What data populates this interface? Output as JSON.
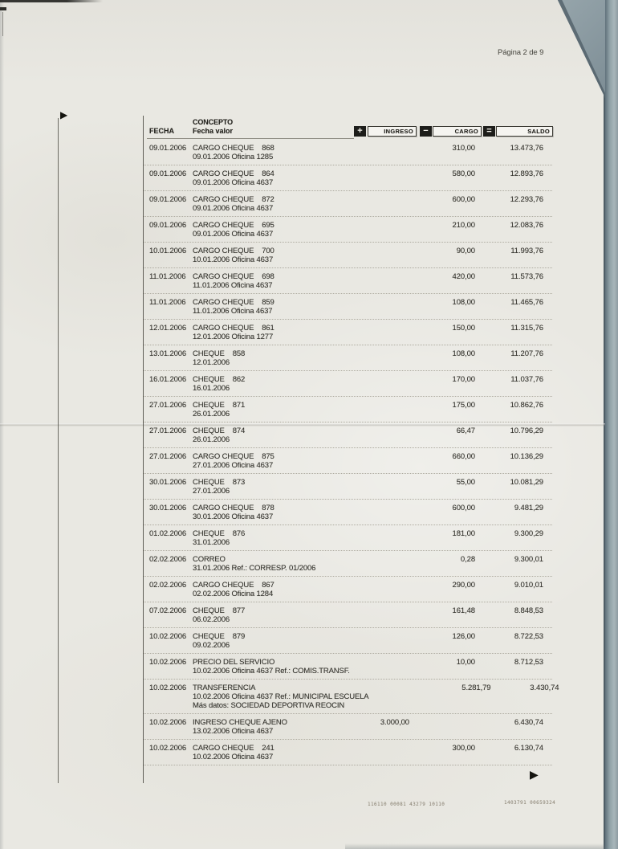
{
  "page": {
    "indicator": "Página 2 de 9",
    "footer_code_left": "116110 00081 43279 10110",
    "footer_code_right": "1403791 00659324"
  },
  "icons": {
    "forward_top": "▶",
    "forward_bottom": "▶",
    "plus": "+",
    "minus": "−",
    "equals": "="
  },
  "colors": {
    "paper": "#e9e8e2",
    "ink": "#35342e",
    "rule": "#514f48",
    "separator": "#aeaba0",
    "scanner_grey": "#8d9ba1"
  },
  "table": {
    "col_fecha": "FECHA",
    "col_concepto": "CONCEPTO",
    "col_fecha_valor": "Fecha valor",
    "col_ingreso": "INGRESO",
    "col_cargo": "CARGO",
    "col_saldo": "SALDO",
    "rows": [
      {
        "fecha": "09.01.2006",
        "concepto": "CARGO CHEQUE    868",
        "detalle": "09.01.2006 Oficina 1285",
        "ingreso": "",
        "cargo": "310,00",
        "saldo": "13.473,76"
      },
      {
        "fecha": "09.01.2006",
        "concepto": "CARGO CHEQUE    864",
        "detalle": "09.01.2006 Oficina 4637",
        "ingreso": "",
        "cargo": "580,00",
        "saldo": "12.893,76"
      },
      {
        "fecha": "09.01.2006",
        "concepto": "CARGO CHEQUE    872",
        "detalle": "09.01.2006 Oficina 4637",
        "ingreso": "",
        "cargo": "600,00",
        "saldo": "12.293,76"
      },
      {
        "fecha": "09.01.2006",
        "concepto": "CARGO CHEQUE    695",
        "detalle": "09.01.2006 Oficina 4637",
        "ingreso": "",
        "cargo": "210,00",
        "saldo": "12.083,76"
      },
      {
        "fecha": "10.01.2006",
        "concepto": "CARGO CHEQUE    700",
        "detalle": "10.01.2006 Oficina 4637",
        "ingreso": "",
        "cargo": "90,00",
        "saldo": "11.993,76"
      },
      {
        "fecha": "11.01.2006",
        "concepto": "CARGO CHEQUE    698",
        "detalle": "11.01.2006 Oficina 4637",
        "ingreso": "",
        "cargo": "420,00",
        "saldo": "11.573,76"
      },
      {
        "fecha": "11.01.2006",
        "concepto": "CARGO CHEQUE    859",
        "detalle": "11.01.2006 Oficina 4637",
        "ingreso": "",
        "cargo": "108,00",
        "saldo": "11.465,76"
      },
      {
        "fecha": "12.01.2006",
        "concepto": "CARGO CHEQUE    861",
        "detalle": "12.01.2006 Oficina 1277",
        "ingreso": "",
        "cargo": "150,00",
        "saldo": "11.315,76"
      },
      {
        "fecha": "13.01.2006",
        "concepto": "CHEQUE    858",
        "detalle": "12.01.2006",
        "ingreso": "",
        "cargo": "108,00",
        "saldo": "11.207,76"
      },
      {
        "fecha": "16.01.2006",
        "concepto": "CHEQUE    862",
        "detalle": "16.01.2006",
        "ingreso": "",
        "cargo": "170,00",
        "saldo": "11.037,76"
      },
      {
        "fecha": "27.01.2006",
        "concepto": "CHEQUE    871",
        "detalle": "26.01.2006",
        "ingreso": "",
        "cargo": "175,00",
        "saldo": "10.862,76"
      },
      {
        "fecha": "27.01.2006",
        "concepto": "CHEQUE    874",
        "detalle": "26.01.2006",
        "ingreso": "",
        "cargo": "66,47",
        "saldo": "10.796,29"
      },
      {
        "fecha": "27.01.2006",
        "concepto": "CARGO CHEQUE    875",
        "detalle": "27.01.2006 Oficina 4637",
        "ingreso": "",
        "cargo": "660,00",
        "saldo": "10.136,29"
      },
      {
        "fecha": "30.01.2006",
        "concepto": "CHEQUE    873",
        "detalle": "27.01.2006",
        "ingreso": "",
        "cargo": "55,00",
        "saldo": "10.081,29"
      },
      {
        "fecha": "30.01.2006",
        "concepto": "CARGO CHEQUE    878",
        "detalle": "30.01.2006 Oficina 4637",
        "ingreso": "",
        "cargo": "600,00",
        "saldo": "9.481,29"
      },
      {
        "fecha": "01.02.2006",
        "concepto": "CHEQUE    876",
        "detalle": "31.01.2006",
        "ingreso": "",
        "cargo": "181,00",
        "saldo": "9.300,29"
      },
      {
        "fecha": "02.02.2006",
        "concepto": "CORREO",
        "detalle": "31.01.2006 Ref.: CORRESP. 01/2006",
        "ingreso": "",
        "cargo": "0,28",
        "saldo": "9.300,01"
      },
      {
        "fecha": "02.02.2006",
        "concepto": "CARGO CHEQUE    867",
        "detalle": "02.02.2006 Oficina 1284",
        "ingreso": "",
        "cargo": "290,00",
        "saldo": "9.010,01"
      },
      {
        "fecha": "07.02.2006",
        "concepto": "CHEQUE    877",
        "detalle": "06.02.2006",
        "ingreso": "",
        "cargo": "161,48",
        "saldo": "8.848,53"
      },
      {
        "fecha": "10.02.2006",
        "concepto": "CHEQUE    879",
        "detalle": "09.02.2006",
        "ingreso": "",
        "cargo": "126,00",
        "saldo": "8.722,53"
      },
      {
        "fecha": "10.02.2006",
        "concepto": "PRECIO DEL SERVICIO",
        "detalle": "10.02.2006 Oficina 4637 Ref.: COMIS.TRANSF.",
        "ingreso": "",
        "cargo": "10,00",
        "saldo": "8.712,53"
      },
      {
        "fecha": "10.02.2006",
        "concepto": "TRANSFERENCIA",
        "detalle": "10.02.2006 Oficina 4637 Ref.: MUNICIPAL ESCUELA",
        "detalle2": "Más datos: SOCIEDAD DEPORTIVA REOCIN",
        "ingreso": "",
        "cargo": "5.281,79",
        "saldo": "3.430,74"
      },
      {
        "fecha": "10.02.2006",
        "concepto": "INGRESO CHEQUE AJENO",
        "detalle": "13.02.2006 Oficina 4637",
        "ingreso": "3.000,00",
        "cargo": "",
        "saldo": "6.430,74"
      },
      {
        "fecha": "10.02.2006",
        "concepto": "CARGO CHEQUE    241",
        "detalle": "10.02.2006 Oficina 4637",
        "ingreso": "",
        "cargo": "300,00",
        "saldo": "6.130,74"
      }
    ]
  }
}
